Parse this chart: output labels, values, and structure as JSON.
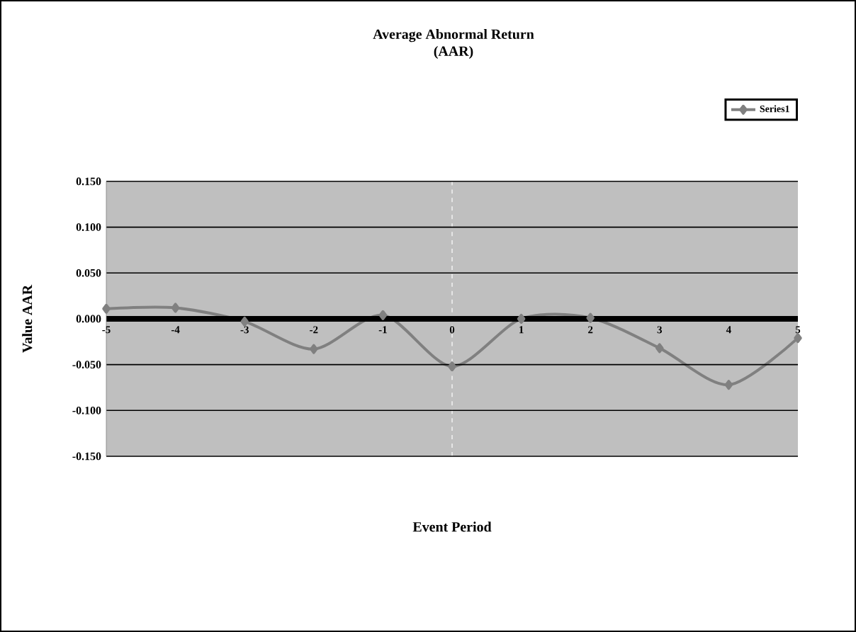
{
  "chart_data": {
    "type": "line",
    "title": "Average Abnormal Return\n(AAR)",
    "xlabel": "Event Period",
    "ylabel": "Value AAR",
    "x": [
      -5,
      -4,
      -3,
      -2,
      -1,
      0,
      1,
      2,
      3,
      4,
      5
    ],
    "series": [
      {
        "name": "Series1",
        "color": "#808080",
        "values": [
          0.011,
          0.012,
          -0.003,
          -0.033,
          0.004,
          -0.052,
          0.0,
          0.001,
          -0.032,
          -0.072,
          -0.021
        ]
      }
    ],
    "xlim": [
      -5,
      5
    ],
    "xticks": [
      -5,
      -4,
      -3,
      -2,
      -1,
      0,
      1,
      2,
      3,
      4,
      5
    ],
    "ylim": [
      -0.15,
      0.15
    ],
    "yticks": [
      {
        "value": -0.15,
        "label": "-0.150"
      },
      {
        "value": -0.1,
        "label": "-0.100"
      },
      {
        "value": -0.05,
        "label": "-0.050"
      },
      {
        "value": 0,
        "label": "0.000"
      },
      {
        "value": 0.05,
        "label": "0.050"
      },
      {
        "value": 0.1,
        "label": "0.100"
      },
      {
        "value": 0.15,
        "label": "0.150"
      }
    ],
    "ref_lines": [
      {
        "axis": "x",
        "value": 0,
        "color": "#ffffff",
        "line_style": "dashed"
      }
    ],
    "grid": "y",
    "legend": "top right",
    "marker": "diamond",
    "line_style": "solid"
  }
}
